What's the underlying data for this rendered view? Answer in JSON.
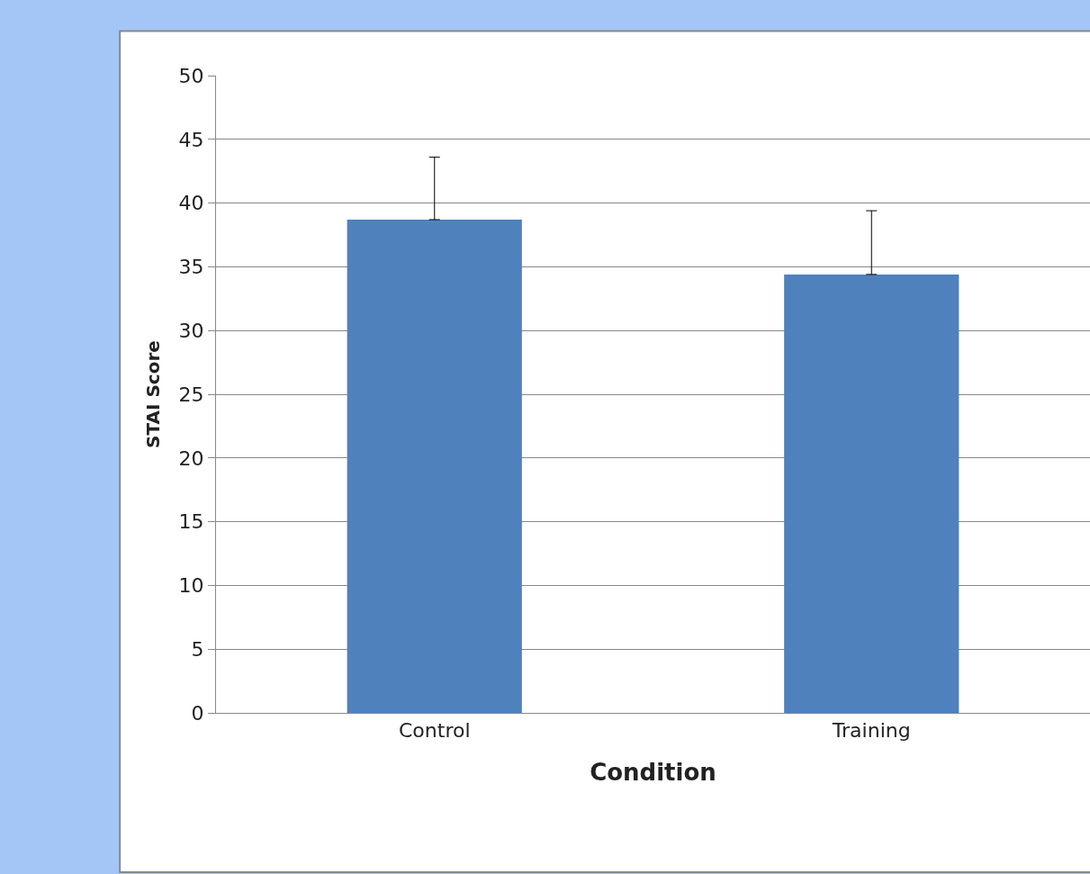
{
  "chart_data": {
    "type": "bar",
    "xlabel": "Condition",
    "ylabel": "STAI Score",
    "categories": [
      "Control",
      "Training"
    ],
    "values": [
      38.7,
      34.4
    ],
    "errors": [
      [
        38.7,
        43.6
      ],
      [
        34.4,
        39.4
      ]
    ],
    "color": "#4f81bd",
    "ylim": [
      0,
      50
    ],
    "yticks": [
      0,
      5,
      10,
      15,
      20,
      25,
      30,
      35,
      40,
      45,
      50
    ],
    "grid": "y"
  }
}
